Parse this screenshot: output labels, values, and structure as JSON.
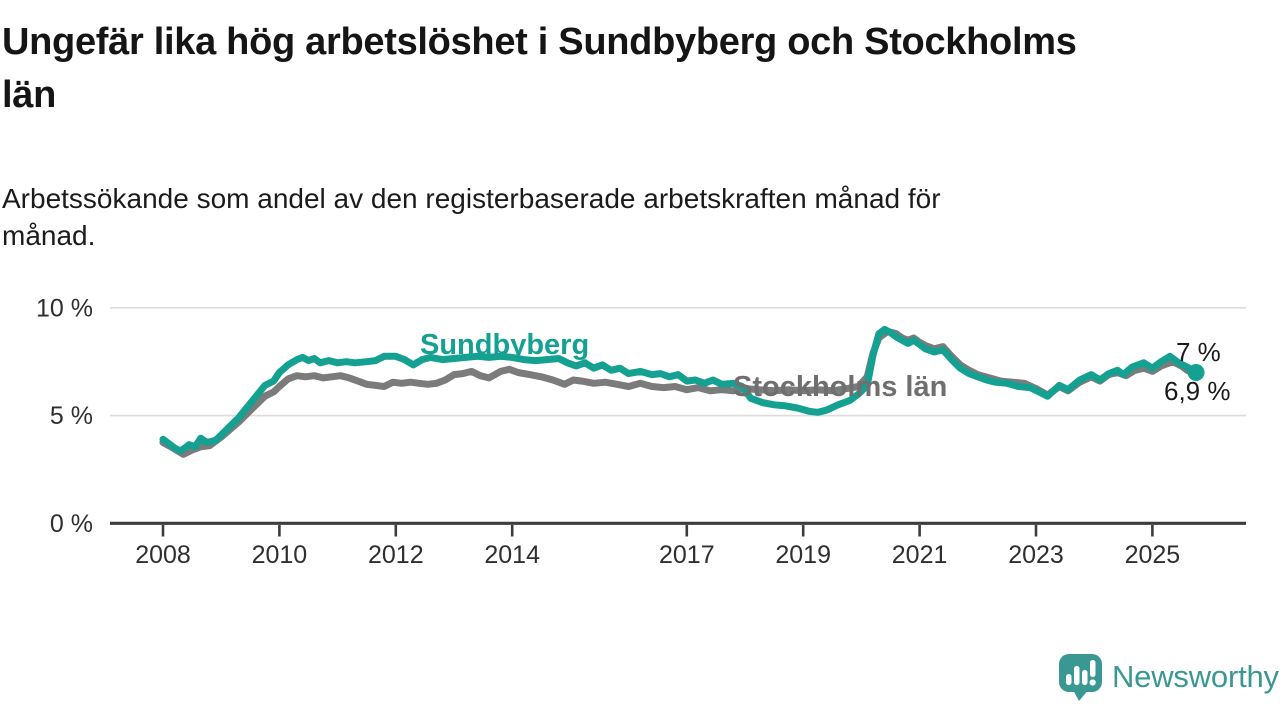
{
  "chart_data": {
    "type": "line",
    "title": "Ungefär lika hög arbetslöshet i Sundbyberg och Stockholms\nlän",
    "subtitle": "Arbetssökande som andel av den registerbaserade arbetskraften månad för\nmånad.",
    "xlabel": "",
    "ylabel": "",
    "xlim": [
      2007.1,
      2026.6
    ],
    "ylim": [
      0,
      10.5
    ],
    "grid": "horizontal gridlines at 5 % and 10 %, dark baseline at 0 %",
    "legend_position": "inline labels on lines",
    "y_ticks": [
      {
        "value": 0,
        "label": "0 %"
      },
      {
        "value": 5,
        "label": "5 %"
      },
      {
        "value": 10,
        "label": "10 %"
      }
    ],
    "x_ticks": [
      {
        "value": 2008,
        "label": "2008"
      },
      {
        "value": 2010,
        "label": "2010"
      },
      {
        "value": 2012,
        "label": "2012"
      },
      {
        "value": 2014,
        "label": "2014"
      },
      {
        "value": 2017,
        "label": "2017"
      },
      {
        "value": 2019,
        "label": "2019"
      },
      {
        "value": 2021,
        "label": "2021"
      },
      {
        "value": 2023,
        "label": "2023"
      },
      {
        "value": 2025,
        "label": "2025"
      }
    ],
    "axis_color": "#3d3d3d",
    "grid_color": "#dcdcdc",
    "tick_text_color": "#2f2f2f",
    "series": [
      {
        "name": "Sundbyberg",
        "color": "#14a192",
        "end_label": "7 %",
        "end_value": 7.0,
        "end_dot": true,
        "points": [
          [
            2008.0,
            3.9
          ],
          [
            2008.1,
            3.7
          ],
          [
            2008.2,
            3.5
          ],
          [
            2008.3,
            3.35
          ],
          [
            2008.45,
            3.65
          ],
          [
            2008.55,
            3.55
          ],
          [
            2008.65,
            3.95
          ],
          [
            2008.75,
            3.75
          ],
          [
            2008.9,
            3.85
          ],
          [
            2009.0,
            4.1
          ],
          [
            2009.15,
            4.5
          ],
          [
            2009.3,
            4.9
          ],
          [
            2009.45,
            5.4
          ],
          [
            2009.6,
            5.9
          ],
          [
            2009.75,
            6.4
          ],
          [
            2009.9,
            6.6
          ],
          [
            2010.0,
            7.0
          ],
          [
            2010.15,
            7.35
          ],
          [
            2010.3,
            7.6
          ],
          [
            2010.4,
            7.7
          ],
          [
            2010.5,
            7.55
          ],
          [
            2010.6,
            7.65
          ],
          [
            2010.7,
            7.45
          ],
          [
            2010.85,
            7.55
          ],
          [
            2011.0,
            7.45
          ],
          [
            2011.15,
            7.5
          ],
          [
            2011.3,
            7.45
          ],
          [
            2011.5,
            7.5
          ],
          [
            2011.65,
            7.55
          ],
          [
            2011.8,
            7.75
          ],
          [
            2012.0,
            7.75
          ],
          [
            2012.15,
            7.6
          ],
          [
            2012.3,
            7.35
          ],
          [
            2012.45,
            7.6
          ],
          [
            2012.6,
            7.7
          ],
          [
            2012.8,
            7.6
          ],
          [
            2013.0,
            7.65
          ],
          [
            2013.2,
            7.7
          ],
          [
            2013.4,
            7.75
          ],
          [
            2013.6,
            7.7
          ],
          [
            2013.8,
            7.75
          ],
          [
            2014.0,
            7.7
          ],
          [
            2014.2,
            7.6
          ],
          [
            2014.4,
            7.55
          ],
          [
            2014.6,
            7.6
          ],
          [
            2014.8,
            7.65
          ],
          [
            2014.95,
            7.45
          ],
          [
            2015.1,
            7.3
          ],
          [
            2015.25,
            7.45
          ],
          [
            2015.4,
            7.2
          ],
          [
            2015.55,
            7.35
          ],
          [
            2015.7,
            7.1
          ],
          [
            2015.85,
            7.2
          ],
          [
            2016.0,
            6.95
          ],
          [
            2016.2,
            7.05
          ],
          [
            2016.4,
            6.9
          ],
          [
            2016.55,
            6.95
          ],
          [
            2016.7,
            6.8
          ],
          [
            2016.85,
            6.9
          ],
          [
            2017.0,
            6.6
          ],
          [
            2017.15,
            6.65
          ],
          [
            2017.3,
            6.5
          ],
          [
            2017.45,
            6.65
          ],
          [
            2017.6,
            6.45
          ],
          [
            2017.8,
            6.5
          ],
          [
            2017.95,
            6.35
          ],
          [
            2018.1,
            5.8
          ],
          [
            2018.3,
            5.6
          ],
          [
            2018.5,
            5.5
          ],
          [
            2018.7,
            5.45
          ],
          [
            2018.9,
            5.35
          ],
          [
            2019.1,
            5.2
          ],
          [
            2019.25,
            5.15
          ],
          [
            2019.4,
            5.25
          ],
          [
            2019.6,
            5.5
          ],
          [
            2019.8,
            5.7
          ],
          [
            2019.95,
            6.0
          ],
          [
            2020.1,
            6.4
          ],
          [
            2020.2,
            7.8
          ],
          [
            2020.3,
            8.8
          ],
          [
            2020.4,
            9.0
          ],
          [
            2020.5,
            8.85
          ],
          [
            2020.6,
            8.65
          ],
          [
            2020.7,
            8.5
          ],
          [
            2020.8,
            8.35
          ],
          [
            2020.9,
            8.5
          ],
          [
            2021.0,
            8.3
          ],
          [
            2021.1,
            8.1
          ],
          [
            2021.25,
            7.95
          ],
          [
            2021.4,
            8.05
          ],
          [
            2021.55,
            7.6
          ],
          [
            2021.7,
            7.2
          ],
          [
            2021.85,
            6.95
          ],
          [
            2022.0,
            6.8
          ],
          [
            2022.15,
            6.65
          ],
          [
            2022.3,
            6.55
          ],
          [
            2022.5,
            6.5
          ],
          [
            2022.7,
            6.35
          ],
          [
            2022.9,
            6.3
          ],
          [
            2023.05,
            6.1
          ],
          [
            2023.2,
            5.9
          ],
          [
            2023.4,
            6.4
          ],
          [
            2023.55,
            6.2
          ],
          [
            2023.75,
            6.65
          ],
          [
            2023.95,
            6.9
          ],
          [
            2024.1,
            6.65
          ],
          [
            2024.25,
            6.95
          ],
          [
            2024.4,
            7.1
          ],
          [
            2024.5,
            6.9
          ],
          [
            2024.65,
            7.25
          ],
          [
            2024.85,
            7.45
          ],
          [
            2025.0,
            7.2
          ],
          [
            2025.15,
            7.5
          ],
          [
            2025.3,
            7.75
          ],
          [
            2025.45,
            7.45
          ],
          [
            2025.6,
            7.25
          ],
          [
            2025.75,
            7.0
          ]
        ]
      },
      {
        "name": "Stockholms län",
        "color": "#7b7b7b",
        "label_color": "#6f6f6f",
        "end_label": "6,9 %",
        "end_value": 6.9,
        "end_dot": false,
        "points": [
          [
            2008.0,
            3.75
          ],
          [
            2008.1,
            3.6
          ],
          [
            2008.2,
            3.45
          ],
          [
            2008.35,
            3.2
          ],
          [
            2008.5,
            3.4
          ],
          [
            2008.65,
            3.55
          ],
          [
            2008.8,
            3.6
          ],
          [
            2009.0,
            4.0
          ],
          [
            2009.15,
            4.35
          ],
          [
            2009.3,
            4.7
          ],
          [
            2009.45,
            5.1
          ],
          [
            2009.6,
            5.5
          ],
          [
            2009.75,
            5.9
          ],
          [
            2009.9,
            6.1
          ],
          [
            2010.0,
            6.35
          ],
          [
            2010.15,
            6.7
          ],
          [
            2010.3,
            6.85
          ],
          [
            2010.45,
            6.8
          ],
          [
            2010.6,
            6.85
          ],
          [
            2010.75,
            6.75
          ],
          [
            2010.9,
            6.8
          ],
          [
            2011.05,
            6.85
          ],
          [
            2011.2,
            6.75
          ],
          [
            2011.35,
            6.6
          ],
          [
            2011.5,
            6.45
          ],
          [
            2011.65,
            6.4
          ],
          [
            2011.8,
            6.35
          ],
          [
            2011.95,
            6.55
          ],
          [
            2012.1,
            6.5
          ],
          [
            2012.25,
            6.55
          ],
          [
            2012.4,
            6.5
          ],
          [
            2012.55,
            6.45
          ],
          [
            2012.7,
            6.5
          ],
          [
            2012.85,
            6.65
          ],
          [
            2013.0,
            6.9
          ],
          [
            2013.15,
            6.95
          ],
          [
            2013.3,
            7.05
          ],
          [
            2013.45,
            6.85
          ],
          [
            2013.6,
            6.75
          ],
          [
            2013.8,
            7.05
          ],
          [
            2013.95,
            7.15
          ],
          [
            2014.1,
            7.0
          ],
          [
            2014.3,
            6.9
          ],
          [
            2014.5,
            6.8
          ],
          [
            2014.7,
            6.65
          ],
          [
            2014.9,
            6.45
          ],
          [
            2015.05,
            6.65
          ],
          [
            2015.2,
            6.6
          ],
          [
            2015.4,
            6.5
          ],
          [
            2015.6,
            6.55
          ],
          [
            2015.8,
            6.45
          ],
          [
            2016.0,
            6.35
          ],
          [
            2016.2,
            6.5
          ],
          [
            2016.4,
            6.35
          ],
          [
            2016.6,
            6.3
          ],
          [
            2016.8,
            6.35
          ],
          [
            2017.0,
            6.2
          ],
          [
            2017.2,
            6.3
          ],
          [
            2017.4,
            6.15
          ],
          [
            2017.6,
            6.2
          ],
          [
            2017.8,
            6.15
          ],
          [
            2018.0,
            6.25
          ],
          [
            2018.25,
            6.2
          ],
          [
            2018.5,
            6.15
          ],
          [
            2018.75,
            6.2
          ],
          [
            2019.0,
            6.15
          ],
          [
            2019.25,
            6.2
          ],
          [
            2019.5,
            6.15
          ],
          [
            2019.75,
            6.25
          ],
          [
            2019.95,
            6.35
          ],
          [
            2020.1,
            6.8
          ],
          [
            2020.2,
            7.9
          ],
          [
            2020.3,
            8.6
          ],
          [
            2020.45,
            8.9
          ],
          [
            2020.6,
            8.8
          ],
          [
            2020.7,
            8.6
          ],
          [
            2020.8,
            8.5
          ],
          [
            2020.9,
            8.6
          ],
          [
            2021.0,
            8.4
          ],
          [
            2021.1,
            8.25
          ],
          [
            2021.25,
            8.1
          ],
          [
            2021.4,
            8.2
          ],
          [
            2021.55,
            7.75
          ],
          [
            2021.7,
            7.35
          ],
          [
            2021.85,
            7.1
          ],
          [
            2022.0,
            6.9
          ],
          [
            2022.2,
            6.75
          ],
          [
            2022.4,
            6.6
          ],
          [
            2022.6,
            6.55
          ],
          [
            2022.8,
            6.5
          ],
          [
            2023.0,
            6.25
          ],
          [
            2023.2,
            5.95
          ],
          [
            2023.4,
            6.35
          ],
          [
            2023.55,
            6.15
          ],
          [
            2023.75,
            6.55
          ],
          [
            2023.95,
            6.8
          ],
          [
            2024.1,
            6.6
          ],
          [
            2024.25,
            6.9
          ],
          [
            2024.4,
            7.0
          ],
          [
            2024.55,
            6.85
          ],
          [
            2024.7,
            7.1
          ],
          [
            2024.85,
            7.2
          ],
          [
            2025.0,
            7.05
          ],
          [
            2025.15,
            7.3
          ],
          [
            2025.35,
            7.5
          ],
          [
            2025.5,
            7.3
          ],
          [
            2025.6,
            7.1
          ],
          [
            2025.75,
            6.9
          ]
        ]
      }
    ]
  },
  "footer": {
    "brand": "Newsworthy",
    "brand_color": "#3a9893"
  }
}
